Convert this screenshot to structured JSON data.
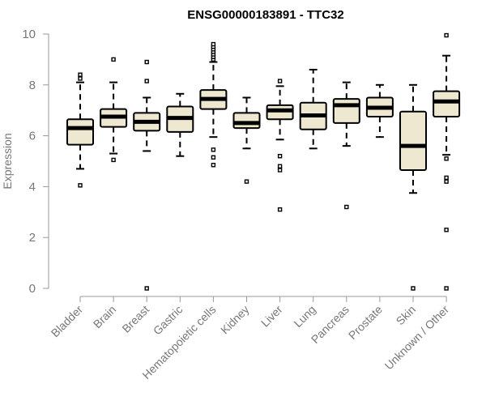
{
  "chart_data": {
    "type": "boxplot",
    "title": "ENSG00000183891 - TTC32",
    "xlabel": "",
    "ylabel": "Expression",
    "ylim": [
      0,
      10
    ],
    "yticks": [
      "0",
      "2",
      "4",
      "6",
      "8",
      "10"
    ],
    "grid": false,
    "box_fill": "#EEE8D0",
    "categories": [
      "Bladder",
      "Brain",
      "Breast",
      "Gastric",
      "Hematopoietic cells",
      "Kidney",
      "Liver",
      "Lung",
      "Pancreas",
      "Prostate",
      "Skin",
      "Unknown / Other"
    ],
    "boxes": [
      {
        "whisker_low": 4.7,
        "q1": 5.65,
        "median": 6.3,
        "q3": 6.65,
        "whisker_high": 8.1,
        "outliers": [
          4.05,
          8.25,
          8.4
        ]
      },
      {
        "whisker_low": 5.3,
        "q1": 6.35,
        "median": 6.75,
        "q3": 7.05,
        "whisker_high": 8.1,
        "outliers": [
          5.05,
          9.0
        ]
      },
      {
        "whisker_low": 5.4,
        "q1": 6.2,
        "median": 6.55,
        "q3": 6.9,
        "whisker_high": 7.5,
        "outliers": [
          0.0,
          8.15,
          8.9
        ]
      },
      {
        "whisker_low": 5.2,
        "q1": 6.15,
        "median": 6.7,
        "q3": 7.15,
        "whisker_high": 7.65,
        "outliers": []
      },
      {
        "whisker_low": 5.95,
        "q1": 7.05,
        "median": 7.45,
        "q3": 7.8,
        "whisker_high": 8.9,
        "outliers": [
          4.85,
          5.15,
          5.45,
          9.0,
          9.1,
          9.2,
          9.3,
          9.4,
          9.5,
          9.6
        ]
      },
      {
        "whisker_low": 5.5,
        "q1": 6.3,
        "median": 6.5,
        "q3": 6.9,
        "whisker_high": 7.5,
        "outliers": [
          4.2
        ]
      },
      {
        "whisker_low": 5.85,
        "q1": 6.65,
        "median": 7.0,
        "q3": 7.2,
        "whisker_high": 7.95,
        "outliers": [
          3.1,
          4.65,
          4.8,
          5.2,
          8.15
        ]
      },
      {
        "whisker_low": 5.5,
        "q1": 6.25,
        "median": 6.8,
        "q3": 7.3,
        "whisker_high": 8.6,
        "outliers": []
      },
      {
        "whisker_low": 5.6,
        "q1": 6.5,
        "median": 7.2,
        "q3": 7.45,
        "whisker_high": 8.1,
        "outliers": [
          3.2
        ]
      },
      {
        "whisker_low": 5.95,
        "q1": 6.75,
        "median": 7.1,
        "q3": 7.5,
        "whisker_high": 8.0,
        "outliers": []
      },
      {
        "whisker_low": 3.75,
        "q1": 4.65,
        "median": 5.6,
        "q3": 6.95,
        "whisker_high": 8.0,
        "outliers": [
          0.0
        ]
      },
      {
        "whisker_low": 5.25,
        "q1": 6.75,
        "median": 7.35,
        "q3": 7.75,
        "whisker_high": 9.15,
        "outliers": [
          0.0,
          2.3,
          4.2,
          4.35,
          5.1,
          9.95
        ]
      }
    ]
  }
}
